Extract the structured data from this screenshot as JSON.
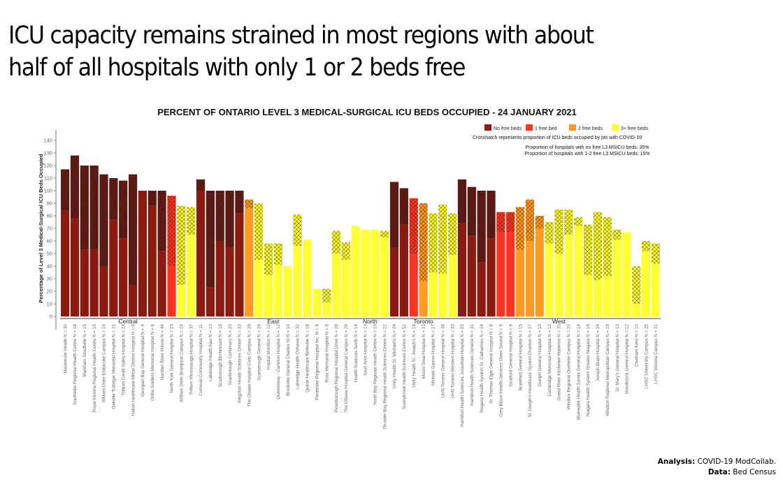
{
  "slide": {
    "headline_line1": "ICU capacity remains strained in most regions with about",
    "headline_line2": "half of all hospitals with only 1 or 2 beds free",
    "footer": {
      "analysis_label": "Analysis:",
      "analysis_value": "COVID-19 ModCollab.",
      "data_label": "Data:",
      "data_value": "Bed Census"
    }
  },
  "chart_data": {
    "type": "bar",
    "title": "PERCENT OF ONTARIO LEVEL 3 MEDICAL-SURGICAL ICU BEDS OCCUPIED - 24 JANUARY 2021",
    "xlabel": "",
    "ylabel": "Percentage of Level 3 Medical-Surgical ICU Beds Occupied",
    "ylim": [
      0,
      145
    ],
    "yticks": [
      0,
      10,
      20,
      30,
      40,
      50,
      60,
      70,
      80,
      90,
      100,
      110,
      120,
      130,
      140
    ],
    "grid": false,
    "legend": {
      "placement": "top-right",
      "entries": [
        {
          "label": "No free beds",
          "color": "#8b1a10"
        },
        {
          "label": "1 free bed",
          "color": "#ff3322"
        },
        {
          "label": "2 free beds",
          "color": "#ff9a22"
        },
        {
          "label": "3+ free beds",
          "color": "#ffff33"
        }
      ]
    },
    "annotations": [
      "Crosshatch represents proportion of ICU beds occupied by pts with COVID-19",
      "Proportion of hospitals with no free L3 MSICU beds:  35%",
      "Proportion of hospitals with 1-2 free L3 MSICU beds: 15%"
    ],
    "status_colors": {
      "none": "#8b1a10",
      "one": "#ff3322",
      "two": "#ff9a22",
      "three_plus": "#ffff33"
    },
    "value_note": "total = total % occupied; covid = % occupied by COVID patients (crosshatched top portion)",
    "regions": [
      {
        "name": "Central",
        "bars": [
          {
            "label": "Mackenzie Health N = 30",
            "status": "none",
            "total": 117,
            "covid": 33
          },
          {
            "label": "Southlake Regional Health Centre N = 18",
            "status": "none",
            "total": 128,
            "covid": 50
          },
          {
            "label": "Markham Stouffville N = 15",
            "status": "none",
            "total": 120,
            "covid": 67
          },
          {
            "label": "Royal Victoria Regional Health Centre N = 15",
            "status": "none",
            "total": 120,
            "covid": 67
          },
          {
            "label": "William Osler Etobicoke Campus N = 14",
            "status": "none",
            "total": 113,
            "covid": 73
          },
          {
            "label": "Oakville Trafalgar Memorial Hospital N = 21",
            "status": "none",
            "total": 110,
            "covid": 33
          },
          {
            "label": "Trillium Credit Valley Hospital N = 24",
            "status": "none",
            "total": 108,
            "covid": 46
          },
          {
            "label": "Halton Healthcare Milton District Hospital N = 8",
            "status": "none",
            "total": 113,
            "covid": 88
          },
          {
            "label": "Georgian Bay General Hospital N = 6",
            "status": "none",
            "total": 100,
            "covid": 0
          },
          {
            "label": "Orillia Soldiers Memorial Hospital N = 8",
            "status": "none",
            "total": 100,
            "covid": 12
          },
          {
            "label": "Humber River Wilson N = 46",
            "status": "none",
            "total": 100,
            "covid": 48
          },
          {
            "label": "North York General Hospital N = 23",
            "status": "one",
            "total": 96,
            "covid": 56
          },
          {
            "label": "William Osler Brampton Campus N = 24",
            "status": "three_plus",
            "total": 88,
            "covid": 63
          },
          {
            "label": "Trillium Mississauga Hospital N = 37",
            "status": "three_plus",
            "total": 87,
            "covid": 22
          }
        ]
      },
      {
        "name": "East",
        "bars": [
          {
            "label": "Cornwall Community Hospital N = 11",
            "status": "none",
            "total": 109,
            "covid": 9
          },
          {
            "label": "Lakeridge Health Ajax N = 13",
            "status": "none",
            "total": 100,
            "covid": 77
          },
          {
            "label": "Scarborough Birchmount N = 15",
            "status": "none",
            "total": 100,
            "covid": 40
          },
          {
            "label": "Scarborough Centenary N = 20",
            "status": "none",
            "total": 100,
            "covid": 45
          },
          {
            "label": "Kingston Health Sciences Centre N = 33",
            "status": "none",
            "total": 100,
            "covid": 18
          },
          {
            "label": "The Ottawa Hospital Civic Campus N = 29",
            "status": "two",
            "total": 93,
            "covid": 7
          },
          {
            "label": "Scarborough General N = 29",
            "status": "three_plus",
            "total": 90,
            "covid": 45
          },
          {
            "label": "Hopital Montfort N = 12",
            "status": "three_plus",
            "total": 58,
            "covid": 25
          },
          {
            "label": "Queensway - Carleton Hospital N = 12",
            "status": "three_plus",
            "total": 58,
            "covid": 17
          },
          {
            "label": "Brockville General Charles St N = 10",
            "status": "three_plus",
            "total": 40,
            "covid": 0
          },
          {
            "label": "Lakeridge Health Oshawa N = 32",
            "status": "three_plus",
            "total": 81,
            "covid": 25
          },
          {
            "label": "Quinte Healthcare Belleville N = 18",
            "status": "three_plus",
            "total": 61,
            "covid": 0
          },
          {
            "label": "Pembroke Regional Hospital Inc. N = 9",
            "status": "three_plus",
            "total": 22,
            "covid": 0
          },
          {
            "label": "Ross Memorial Hospital N = 9",
            "status": "three_plus",
            "total": 22,
            "covid": 11
          },
          {
            "label": "Peterborough Regional Hospital Drive N = 28",
            "status": "three_plus",
            "total": 68,
            "covid": 18
          },
          {
            "label": "The Ottawa Hospital General Campus N = 29",
            "status": "three_plus",
            "total": 59,
            "covid": 14
          }
        ]
      },
      {
        "name": "North",
        "bars": [
          {
            "label": "Health Sciences North N = 14",
            "status": "three_plus",
            "total": 72,
            "covid": 0
          },
          {
            "label": "Sault Area Hospital N = 13",
            "status": "three_plus",
            "total": 69,
            "covid": 0
          },
          {
            "label": "North Bay Regional Health Centre N = 16",
            "status": "three_plus",
            "total": 69,
            "covid": 0
          },
          {
            "label": "Thunder Bay Regional Health Sciences Centre N = 22",
            "status": "three_plus",
            "total": 68,
            "covid": 5
          }
        ]
      },
      {
        "name": "Toronto",
        "bars": [
          {
            "label": "Unity Health St. Michael's N = 29",
            "status": "none",
            "total": 107,
            "covid": 52
          },
          {
            "label": "Sunnybrook Health Sciences Centre N = 52",
            "status": "none",
            "total": 102,
            "covid": 29
          },
          {
            "label": "Unity Health St. Joseph's N = 18",
            "status": "one",
            "total": 94,
            "covid": 44
          },
          {
            "label": "Mount Sinai Hospital N = 21",
            "status": "two",
            "total": 90,
            "covid": 62
          },
          {
            "label": "Michael Garron Hospital N = 17",
            "status": "three_plus",
            "total": 82,
            "covid": 47
          },
          {
            "label": "UHN Toronto General Hospital N = 38",
            "status": "three_plus",
            "total": 89,
            "covid": 55
          },
          {
            "label": "UHN Toronto Western Hospital N = 33",
            "status": "three_plus",
            "total": 82,
            "covid": 33
          }
        ]
      },
      {
        "name": "West",
        "bars": [
          {
            "label": "Hamilton Health Sciences Juravinski Hospital N = 23",
            "status": "none",
            "total": 109,
            "covid": 35
          },
          {
            "label": "Hamilton Health Sciences General N = 31",
            "status": "none",
            "total": 103,
            "covid": 39
          },
          {
            "label": "Niagara Health System St. Catharines N = 14",
            "status": "none",
            "total": 100,
            "covid": 57
          },
          {
            "label": "St. Thomas-Elgin General Hospital N = 8",
            "status": "none",
            "total": 100,
            "covid": 38
          },
          {
            "label": "Grey Bruce Health Services Owen Sound N = 6",
            "status": "one",
            "total": 83,
            "covid": 16
          },
          {
            "label": "Stratford General Hospital N = 6",
            "status": "one",
            "total": 83,
            "covid": 16
          },
          {
            "label": "Brantford General Hospital N = 15",
            "status": "two",
            "total": 87,
            "covid": 34
          },
          {
            "label": "St Joseph's Healthcare System Charlton N = 27",
            "status": "two",
            "total": 93,
            "covid": 33
          },
          {
            "label": "Guelph General Hospital N = 10",
            "status": "two",
            "total": 80,
            "covid": 10
          },
          {
            "label": "Cambridge Memorial Hospital N = 12",
            "status": "three_plus",
            "total": 75,
            "covid": 17
          },
          {
            "label": "Grand River Kitchener Waterloo N = 20",
            "status": "three_plus",
            "total": 85,
            "covid": 35
          },
          {
            "label": "Windsor Regional Ouellette Campus N = 20",
            "status": "three_plus",
            "total": 85,
            "covid": 20
          },
          {
            "label": "Bluewater Health Sarnia General Hospital N = 14",
            "status": "three_plus",
            "total": 79,
            "covid": 7
          },
          {
            "label": "Niagara Health System Greater Niagara N = 15",
            "status": "three_plus",
            "total": 73,
            "covid": 40
          },
          {
            "label": "Joseph Brant Hospital N = 24",
            "status": "three_plus",
            "total": 83,
            "covid": 54
          },
          {
            "label": "Windsor Regional Metropolitan Campus N = 19",
            "status": "three_plus",
            "total": 79,
            "covid": 47
          },
          {
            "label": "St. Mary's General Hospital N = 13",
            "status": "three_plus",
            "total": 69,
            "covid": 8
          },
          {
            "label": "Woodstock General Hospital N = 12",
            "status": "three_plus",
            "total": 67,
            "covid": 0
          },
          {
            "label": "Chatham-Kent N = 10",
            "status": "three_plus",
            "total": 40,
            "covid": 30
          },
          {
            "label": "LHSC University Campus N = 25",
            "status": "three_plus",
            "total": 60,
            "covid": 8
          },
          {
            "label": "LHSC Victoria Campus N = 31",
            "status": "three_plus",
            "total": 58,
            "covid": 16
          }
        ]
      }
    ]
  }
}
